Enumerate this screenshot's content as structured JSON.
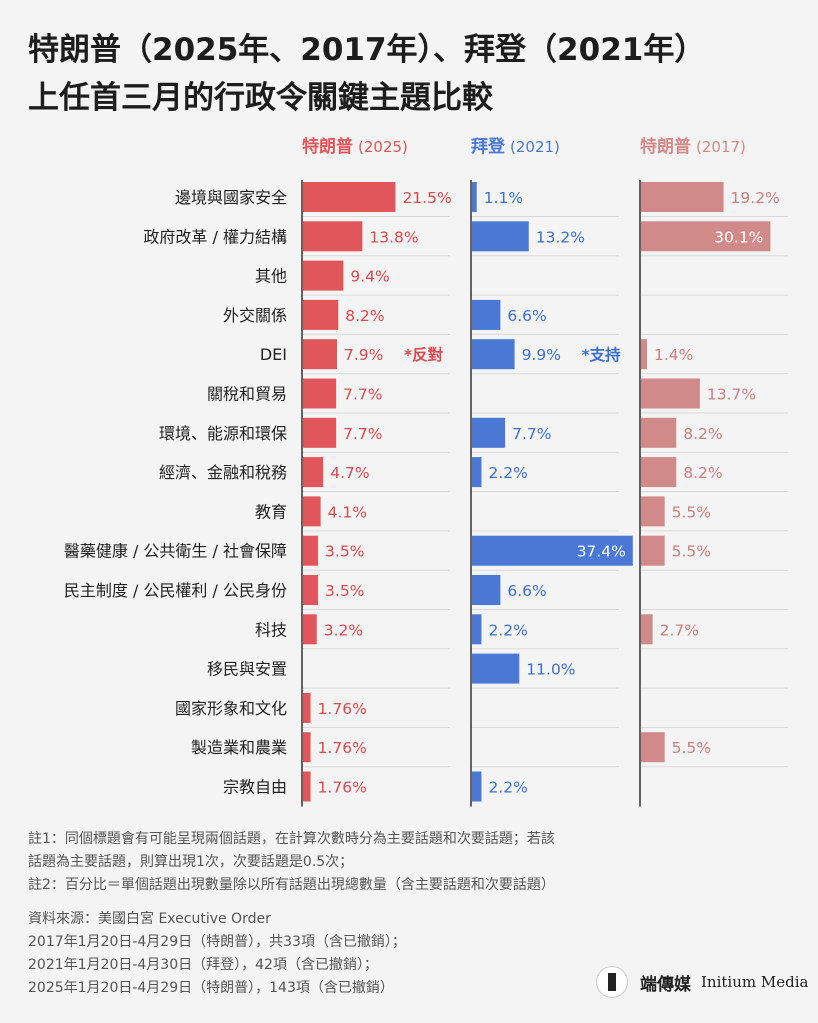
{
  "title": {
    "line1": "特朗普（2025年、2017年）、拜登（2021年）",
    "line2": "上任首三月的行政令關鍵主題比較"
  },
  "colors": {
    "trump2025": "#e0565b",
    "biden2021": "#4a78d4",
    "trump2017": "#d18a8a",
    "grid": "#d9d9d9"
  },
  "chart_data": {
    "type": "bar",
    "unit": "%",
    "categories": [
      "邊境與國家安全",
      "政府改革 / 權力結構",
      "其他",
      "外交關係",
      "DEI",
      "關稅和貿易",
      "環境、能源和環保",
      "經濟、金融和稅務",
      "教育",
      "醫藥健康 / 公共衛生 / 社會保障",
      "民主制度 / 公民權利 / 公民身份",
      "科技",
      "移民與安置",
      "國家形象和文化",
      "製造業和農業",
      "宗教自由"
    ],
    "series": [
      {
        "name": "特朗普",
        "year": "(2025)",
        "key": "trump2025",
        "values": [
          21.5,
          13.8,
          9.4,
          8.2,
          7.9,
          7.7,
          7.7,
          4.7,
          4.1,
          3.5,
          3.5,
          3.2,
          null,
          1.76,
          1.76,
          1.76
        ],
        "labels": [
          "21.5%",
          "13.8%",
          "9.4%",
          "8.2%",
          "7.9%",
          "7.7%",
          "7.7%",
          "4.7%",
          "4.1%",
          "3.5%",
          "3.5%",
          "3.2%",
          "",
          "1.76%",
          "1.76%",
          "1.76%"
        ]
      },
      {
        "name": "拜登",
        "year": "(2021)",
        "key": "biden2021",
        "values": [
          1.1,
          13.2,
          null,
          6.6,
          9.9,
          null,
          7.7,
          2.2,
          null,
          37.4,
          6.6,
          2.2,
          11.0,
          null,
          null,
          2.2
        ],
        "labels": [
          "1.1%",
          "13.2%",
          "",
          "6.6%",
          "9.9%",
          "",
          "7.7%",
          "2.2%",
          "",
          "37.4%",
          "6.6%",
          "2.2%",
          "11.0%",
          "",
          "",
          "2.2%"
        ]
      },
      {
        "name": "特朗普",
        "year": "(2017)",
        "key": "trump2017",
        "values": [
          19.2,
          30.1,
          null,
          null,
          1.4,
          13.7,
          8.2,
          8.2,
          5.5,
          5.5,
          null,
          2.7,
          null,
          null,
          5.5,
          null
        ],
        "labels": [
          "19.2%",
          "30.1%",
          "",
          "",
          "1.4%",
          "13.7%",
          "8.2%",
          "8.2%",
          "5.5%",
          "5.5%",
          "",
          "2.7%",
          "",
          "",
          "5.5%",
          ""
        ]
      }
    ],
    "annotations": [
      {
        "series": 0,
        "category": 4,
        "text": "*反對"
      },
      {
        "series": 1,
        "category": 4,
        "text": "*支持"
      }
    ]
  },
  "notes": [
    "註1：同個標題會有可能呈現兩個話題，在計算次數時分為主要話題和次要話題；若該",
    "話題為主要話題，則算出現1次，次要話題是0.5次；",
    "註2：百分比＝單個話題出現數量除以所有話題出現總數量（含主要話題和次要話題）"
  ],
  "sources": [
    "資料來源：美國白宮 Executive Order",
    "2017年1月20日-4月29日（特朗普），共33項（含已撤銷）；",
    "2021年1月20日-4月30日（拜登），42項（含已撤銷）；",
    "2025年1月20日-4月29日（特朗普），143項（含已撤銷）"
  ],
  "logo": {
    "name_cn": "端傳媒",
    "name_en": "Initium Media"
  }
}
